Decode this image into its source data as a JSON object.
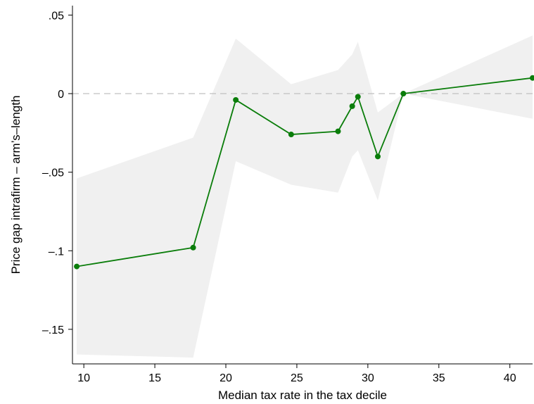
{
  "chart_data": {
    "type": "line",
    "title": "",
    "xlabel": "Median tax rate in the tax decile",
    "ylabel": "Price gap intrafirm – arm’s–length",
    "xlim": [
      9.2,
      41.6
    ],
    "ylim": [
      -0.172,
      0.056
    ],
    "x_ticks": [
      10,
      15,
      20,
      25,
      30,
      35,
      40
    ],
    "x_tick_labels": [
      "10",
      "15",
      "20",
      "25",
      "30",
      "35",
      "40"
    ],
    "y_ticks": [
      0.05,
      0,
      -0.05,
      -0.1,
      -0.15
    ],
    "y_tick_labels": [
      ".05",
      "0",
      "–.05",
      "–.1",
      "–.15"
    ],
    "reference_line_y": 0,
    "grid": false,
    "colors": {
      "line": "#0a7d0a",
      "band": "#f0f0f0",
      "reference": "#c0c0c0"
    },
    "series": [
      {
        "x": [
          9.5,
          17.7,
          20.7,
          24.6,
          27.9,
          28.9,
          29.3,
          30.7,
          32.5,
          41.6
        ],
        "y": [
          -0.11,
          -0.098,
          -0.004,
          -0.026,
          -0.024,
          -0.008,
          -0.002,
          -0.04,
          0.0,
          0.01
        ],
        "ci_upper": [
          -0.054,
          -0.028,
          0.035,
          0.006,
          0.015,
          0.025,
          0.033,
          -0.012,
          0.0,
          0.037
        ],
        "ci_lower": [
          -0.166,
          -0.168,
          -0.043,
          -0.058,
          -0.063,
          -0.04,
          -0.036,
          -0.068,
          0.0,
          -0.016
        ]
      }
    ]
  }
}
